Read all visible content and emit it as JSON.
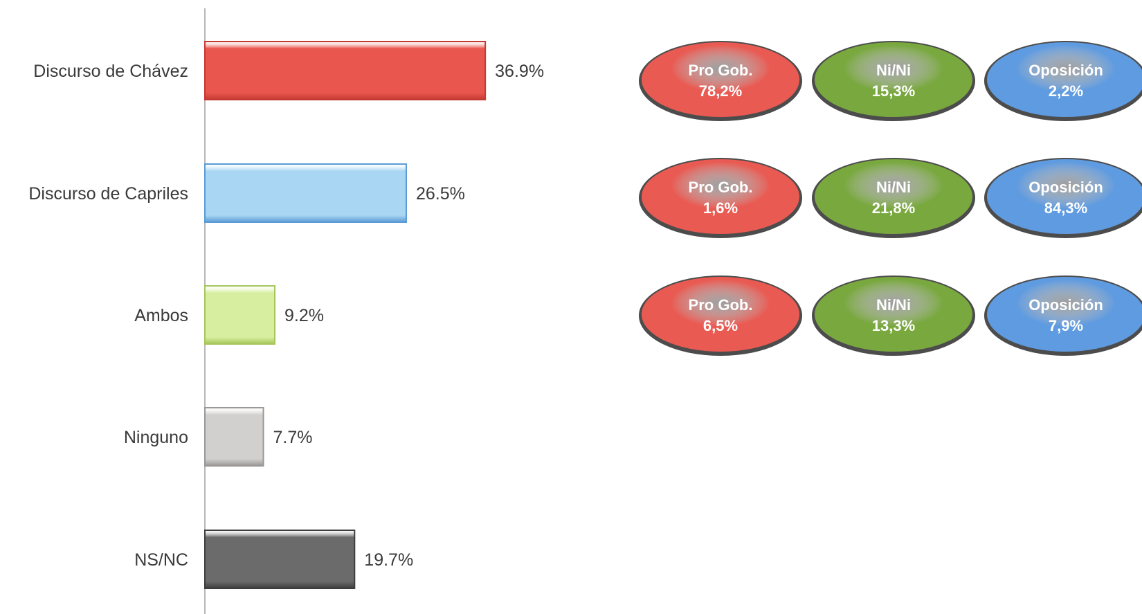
{
  "chart_data": {
    "type": "bar",
    "orientation": "horizontal",
    "categories": [
      "Discurso de Chávez",
      "Discurso de Capriles",
      "Ambos",
      "Ninguno",
      "NS/NC"
    ],
    "values": [
      36.9,
      26.5,
      9.2,
      7.7,
      19.7
    ],
    "value_labels": [
      "36.9%",
      "26.5%",
      "9.2%",
      "7.7%",
      "19.7%"
    ],
    "unit": "%",
    "grid": false,
    "bar_colors": [
      "#e8564d",
      "#a9d6f3",
      "#d7eea0",
      "#d2d0cf",
      "#6b6b6b"
    ],
    "bar_edge_colors": [
      "#c43a32",
      "#5b9bd5",
      "#a6c65a",
      "#9a9896",
      "#3d3d3d"
    ]
  },
  "breakdown": {
    "group_colors": {
      "pro_gob": "#e95a52",
      "ni_ni": "#79a83f",
      "oposicion": "#5f9be0"
    },
    "rows": [
      {
        "category": "Discurso de Chávez",
        "pills": [
          {
            "group": "pro_gob",
            "label": "Pro Gob.",
            "value": "78,2%"
          },
          {
            "group": "ni_ni",
            "label": "Ni/Ni",
            "value": "15,3%"
          },
          {
            "group": "oposicion",
            "label": "Oposición",
            "value": "2,2%"
          }
        ]
      },
      {
        "category": "Discurso de Capriles",
        "pills": [
          {
            "group": "pro_gob",
            "label": "Pro Gob.",
            "value": "1,6%"
          },
          {
            "group": "ni_ni",
            "label": "Ni/Ni",
            "value": "21,8%"
          },
          {
            "group": "oposicion",
            "label": "Oposición",
            "value": "84,3%"
          }
        ]
      },
      {
        "category": "Ambos",
        "pills": [
          {
            "group": "pro_gob",
            "label": "Pro Gob.",
            "value": "6,5%"
          },
          {
            "group": "ni_ni",
            "label": "Ni/Ni",
            "value": "13,3%"
          },
          {
            "group": "oposicion",
            "label": "Oposición",
            "value": "7,9%"
          }
        ]
      }
    ]
  }
}
